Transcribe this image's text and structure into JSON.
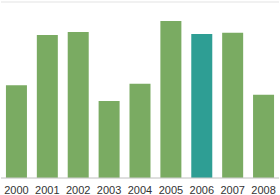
{
  "chart_data": {
    "type": "bar",
    "categories": [
      "2000",
      "2001",
      "2002",
      "2003",
      "2004",
      "2005",
      "2006",
      "2007",
      "2008"
    ],
    "values": [
      2.11,
      3.25,
      3.32,
      1.75,
      2.14,
      3.57,
      3.27,
      3.3,
      1.89
    ],
    "colors": [
      "#7aab62",
      "#7aab62",
      "#7aab62",
      "#7aab62",
      "#7aab62",
      "#7aab62",
      "#2e9e94",
      "#7aab62",
      "#7aab62"
    ],
    "ylim": [
      0,
      4
    ],
    "yticks": [
      0,
      1,
      2,
      3,
      4
    ],
    "grid": true,
    "tick_labels": "x"
  }
}
